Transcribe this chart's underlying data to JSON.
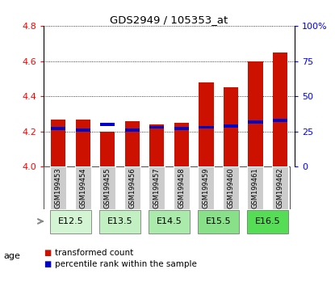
{
  "title": "GDS2949 / 105353_at",
  "samples": [
    "GSM199453",
    "GSM199454",
    "GSM199455",
    "GSM199456",
    "GSM199457",
    "GSM199458",
    "GSM199459",
    "GSM199460",
    "GSM199461",
    "GSM199462"
  ],
  "transformed_count": [
    4.27,
    4.27,
    4.2,
    4.26,
    4.24,
    4.25,
    4.48,
    4.45,
    4.6,
    4.65
  ],
  "percentile_rank": [
    27,
    26,
    30,
    26,
    28,
    27,
    28,
    29,
    32,
    33
  ],
  "ylim_left": [
    4.0,
    4.8
  ],
  "ylim_right": [
    0,
    100
  ],
  "yticks_left": [
    4.0,
    4.2,
    4.4,
    4.6,
    4.8
  ],
  "yticks_right": [
    0,
    25,
    50,
    75,
    100
  ],
  "age_groups": [
    {
      "label": "E12.5",
      "start": 0,
      "end": 1,
      "color": "#d4f5d4"
    },
    {
      "label": "E13.5",
      "start": 2,
      "end": 3,
      "color": "#c2f0c2"
    },
    {
      "label": "E14.5",
      "start": 4,
      "end": 5,
      "color": "#aaeaaa"
    },
    {
      "label": "E15.5",
      "start": 6,
      "end": 7,
      "color": "#88e088"
    },
    {
      "label": "E16.5",
      "start": 8,
      "end": 9,
      "color": "#55dd55"
    }
  ],
  "bar_color_red": "#cc1100",
  "bar_color_blue": "#0000cc",
  "bar_width": 0.6,
  "ybase": 4.0,
  "bg_color": "#ffffff",
  "sample_bg_color": "#cccccc",
  "legend_red": "transformed count",
  "legend_blue": "percentile rank within the sample"
}
